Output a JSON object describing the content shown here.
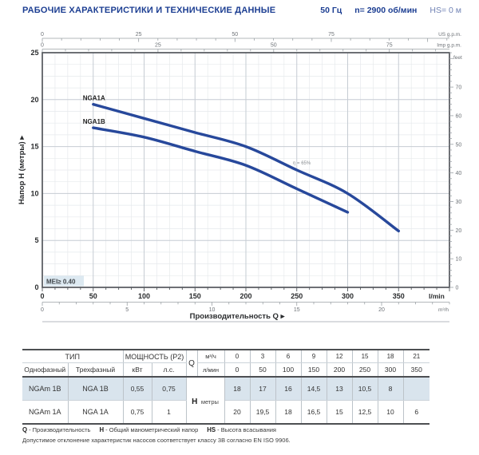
{
  "header": {
    "title": "РАБОЧИЕ ХАРАКТЕРИСТИКИ И ТЕХНИЧЕСКИЕ ДАННЫЕ",
    "frequency": "50 Гц",
    "speed": "n= 2900 об/мин",
    "suction": "HS= 0 м"
  },
  "chart_data": {
    "type": "line",
    "xlabel": "Производительность Q",
    "ylabel": "Напор H (метры)",
    "x_max_lmin": 400,
    "y_max_m": 25,
    "x_axes": [
      {
        "unit": "US g.p.m.",
        "labels": [
          0,
          25,
          50,
          75
        ]
      },
      {
        "unit": "Imp g.p.m.",
        "labels": [
          0,
          25,
          50,
          75
        ]
      },
      {
        "unit": "l/min",
        "labels": [
          0,
          50,
          100,
          150,
          200,
          250,
          300,
          350
        ]
      },
      {
        "unit": "m³/h",
        "labels": [
          0,
          5,
          10,
          15,
          20
        ]
      }
    ],
    "y_axes": [
      {
        "unit": "метры",
        "labels": [
          0,
          5,
          10,
          15,
          20,
          25
        ]
      },
      {
        "unit": "feet",
        "labels": [
          0,
          10,
          20,
          30,
          40,
          50,
          60,
          70
        ]
      }
    ],
    "series": [
      {
        "name": "NGA1A",
        "color": "#27489b",
        "x_lmin": [
          50,
          100,
          150,
          200,
          250,
          300,
          350
        ],
        "h_m": [
          19.5,
          18,
          16.5,
          15,
          12.5,
          10,
          6
        ]
      },
      {
        "name": "NGA1B",
        "color": "#27489b",
        "x_lmin": [
          50,
          100,
          150,
          200,
          250,
          300
        ],
        "h_m": [
          17,
          16,
          14.5,
          13,
          10.5,
          8
        ]
      }
    ],
    "annotations": [
      {
        "text": "η = 65%",
        "x_lmin": 255,
        "y_m": 13.1
      }
    ],
    "badge": "MEI≥ 0.40"
  },
  "table": {
    "headers": {
      "tip": "ТИП",
      "power": "МОЩНОСТЬ (P2)",
      "single": "Однофазный",
      "three": "Трехфазный",
      "kw": "кВт",
      "hp": "л.с.",
      "q": "Q",
      "m3h": "м³/ч",
      "lmin": "л/мин",
      "h": "H",
      "meters": "метры"
    },
    "q_m3h": [
      "0",
      "3",
      "6",
      "9",
      "12",
      "15",
      "18",
      "21"
    ],
    "q_lmin": [
      "0",
      "50",
      "100",
      "150",
      "200",
      "250",
      "300",
      "350"
    ],
    "rows": [
      {
        "single": "NGAm 1B",
        "three": "NGA 1B",
        "kw": "0,55",
        "hp": "0,75",
        "h": [
          "18",
          "17",
          "16",
          "14,5",
          "13",
          "10,5",
          "8",
          ""
        ]
      },
      {
        "single": "NGAm 1A",
        "three": "NGA 1A",
        "kw": "0,75",
        "hp": "1",
        "h": [
          "20",
          "19,5",
          "18",
          "16,5",
          "15",
          "12,5",
          "10",
          "6"
        ]
      }
    ]
  },
  "footer": {
    "legend": [
      {
        "key": "Q",
        "text": "- Производительность"
      },
      {
        "key": "H",
        "text": "- Общий манометрический напор"
      },
      {
        "key": "HS",
        "text": "- Высота всасывания"
      }
    ],
    "note": "Допустимое отклонение характеристик насосов соответствует классу 3B согласно EN ISO 9906."
  }
}
